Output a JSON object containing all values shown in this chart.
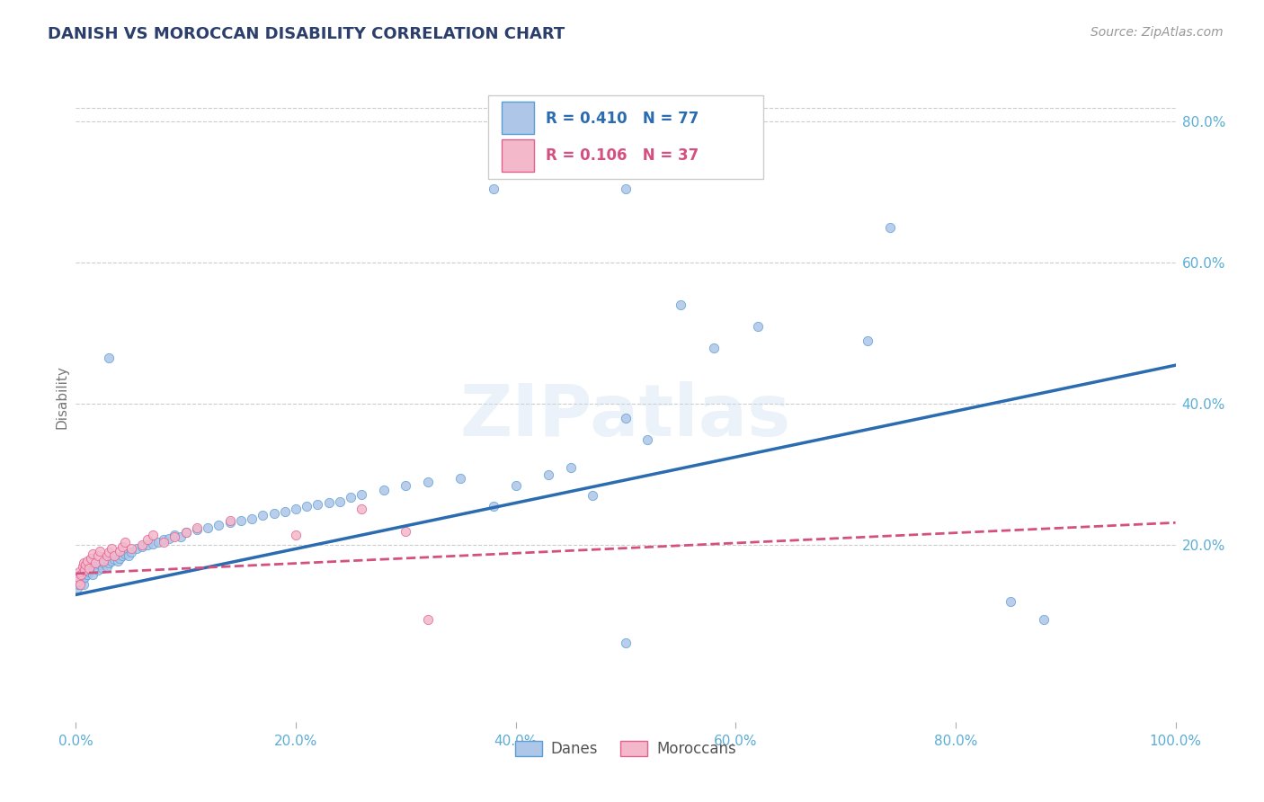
{
  "title": "DANISH VS MOROCCAN DISABILITY CORRELATION CHART",
  "source": "Source: ZipAtlas.com",
  "ylabel": "Disability",
  "blue_R": 0.41,
  "blue_N": 77,
  "pink_R": 0.106,
  "pink_N": 37,
  "blue_color": "#aec6e8",
  "pink_color": "#f4b8cb",
  "blue_edge_color": "#5a9fd4",
  "pink_edge_color": "#e06090",
  "blue_line_color": "#2b6cb0",
  "pink_line_color": "#d45080",
  "title_color": "#2c3e6b",
  "source_color": "#999999",
  "right_axis_color": "#5badd6",
  "xtick_color": "#5badd6",
  "grid_color": "#cccccc",
  "background_color": "#ffffff",
  "xlim": [
    0.0,
    1.0
  ],
  "ylim": [
    -0.05,
    0.87
  ],
  "blue_scatter_x": [
    0.001,
    0.002,
    0.003,
    0.004,
    0.005,
    0.006,
    0.007,
    0.008,
    0.009,
    0.01,
    0.012,
    0.014,
    0.015,
    0.016,
    0.018,
    0.02,
    0.022,
    0.024,
    0.025,
    0.028,
    0.03,
    0.032,
    0.035,
    0.038,
    0.04,
    0.042,
    0.045,
    0.048,
    0.05,
    0.055,
    0.06,
    0.065,
    0.07,
    0.075,
    0.08,
    0.085,
    0.09,
    0.095,
    0.1,
    0.11,
    0.12,
    0.13,
    0.14,
    0.15,
    0.16,
    0.17,
    0.18,
    0.19,
    0.2,
    0.21,
    0.22,
    0.23,
    0.24,
    0.25,
    0.26,
    0.28,
    0.3,
    0.32,
    0.35,
    0.38,
    0.4,
    0.43,
    0.45,
    0.47,
    0.5,
    0.52,
    0.55,
    0.58,
    0.62,
    0.72,
    0.74,
    0.85,
    0.88,
    0.5,
    0.5,
    0.38,
    0.03
  ],
  "blue_scatter_y": [
    0.14,
    0.145,
    0.15,
    0.155,
    0.148,
    0.152,
    0.145,
    0.155,
    0.16,
    0.158,
    0.162,
    0.165,
    0.158,
    0.168,
    0.17,
    0.165,
    0.172,
    0.168,
    0.175,
    0.17,
    0.175,
    0.178,
    0.18,
    0.178,
    0.182,
    0.185,
    0.188,
    0.185,
    0.19,
    0.195,
    0.198,
    0.2,
    0.202,
    0.205,
    0.208,
    0.21,
    0.215,
    0.212,
    0.218,
    0.222,
    0.225,
    0.228,
    0.232,
    0.235,
    0.238,
    0.242,
    0.245,
    0.248,
    0.252,
    0.255,
    0.258,
    0.26,
    0.262,
    0.268,
    0.272,
    0.278,
    0.285,
    0.29,
    0.295,
    0.255,
    0.285,
    0.3,
    0.31,
    0.27,
    0.38,
    0.35,
    0.54,
    0.48,
    0.51,
    0.49,
    0.65,
    0.12,
    0.095,
    0.705,
    0.062,
    0.705,
    0.465
  ],
  "pink_scatter_x": [
    0.001,
    0.002,
    0.003,
    0.004,
    0.005,
    0.006,
    0.007,
    0.008,
    0.009,
    0.01,
    0.012,
    0.014,
    0.015,
    0.018,
    0.02,
    0.022,
    0.025,
    0.028,
    0.03,
    0.032,
    0.035,
    0.04,
    0.042,
    0.045,
    0.05,
    0.06,
    0.065,
    0.07,
    0.08,
    0.09,
    0.1,
    0.11,
    0.14,
    0.2,
    0.26,
    0.3,
    0.32
  ],
  "pink_scatter_y": [
    0.148,
    0.155,
    0.162,
    0.145,
    0.158,
    0.17,
    0.175,
    0.165,
    0.172,
    0.178,
    0.168,
    0.182,
    0.188,
    0.175,
    0.185,
    0.192,
    0.178,
    0.185,
    0.19,
    0.195,
    0.185,
    0.192,
    0.198,
    0.205,
    0.195,
    0.2,
    0.208,
    0.215,
    0.205,
    0.212,
    0.218,
    0.225,
    0.235,
    0.215,
    0.252,
    0.22,
    0.095
  ],
  "blue_trend_x": [
    0.0,
    1.0
  ],
  "blue_trend_y": [
    0.13,
    0.455
  ],
  "pink_trend_x": [
    0.0,
    1.0
  ],
  "pink_trend_y": [
    0.16,
    0.232
  ],
  "xtick_vals": [
    0.0,
    0.2,
    0.4,
    0.6,
    0.8,
    1.0
  ],
  "xtick_labels": [
    "0.0%",
    "20.0%",
    "40.0%",
    "60.0%",
    "80.0%",
    "100.0%"
  ],
  "ytick_right_vals": [
    0.2,
    0.4,
    0.6,
    0.8
  ],
  "ytick_right_labels": [
    "20.0%",
    "40.0%",
    "60.0%",
    "80.0%"
  ],
  "watermark_text": "ZIPatlas",
  "scatter_size": 55,
  "grid_color_top": "#cccccc"
}
